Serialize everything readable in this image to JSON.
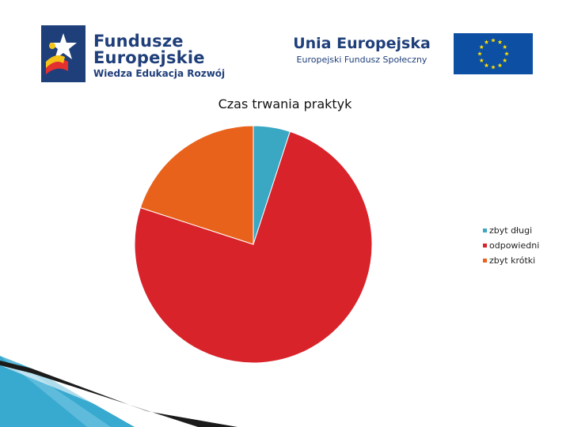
{
  "header": {
    "fe_logo": {
      "line1": "Fundusze",
      "line2": "Europejskie",
      "line3": "Wiedza Edukacja Rozwój"
    },
    "eu_logo": {
      "title": "Unia Europejska",
      "subtitle": "Europejski Fundusz Społeczny"
    }
  },
  "colors": {
    "brand_navy": "#1f3f7a",
    "eu_blue": "#0c4fa3",
    "eu_star": "#ffdd00",
    "corner_teal": "#38a9cf"
  },
  "chart_data": {
    "type": "pie",
    "title": "Czas trwania praktyk",
    "categories": [
      "zbyt długi",
      "odpowiedni",
      "zbyt krótki"
    ],
    "values": [
      5,
      75,
      20
    ],
    "colors": [
      "#3aa7c3",
      "#d8232b",
      "#e9621c"
    ],
    "legend_position": "right",
    "start_angle": "12 o'clock, clockwise"
  }
}
